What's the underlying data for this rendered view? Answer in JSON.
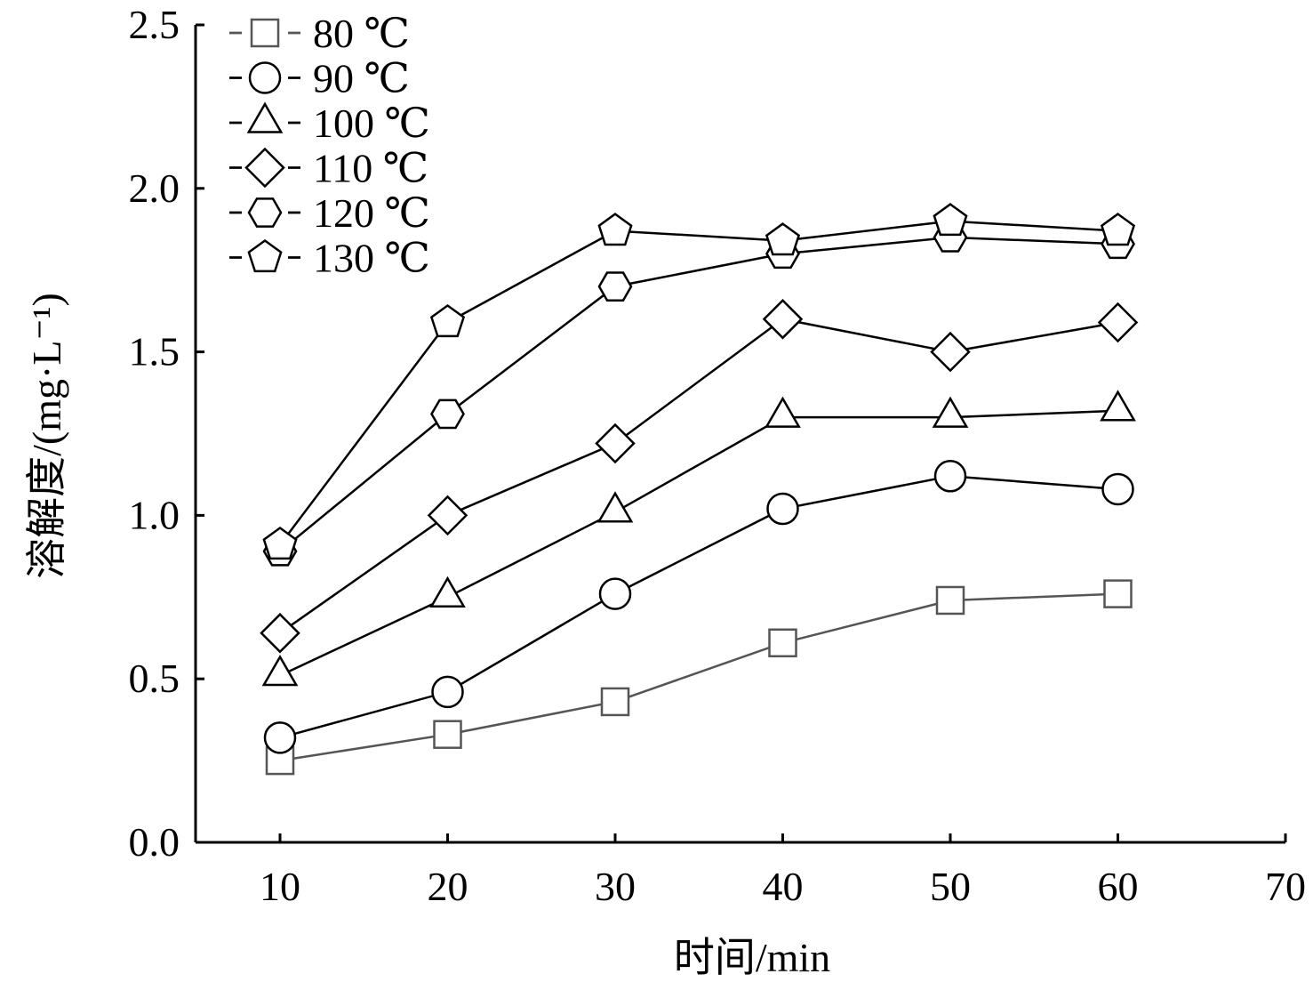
{
  "chart_data": {
    "type": "line",
    "title": "",
    "xlabel": "时间/min",
    "ylabel": "溶解度/(mg·L⁻¹)",
    "xlim": [
      5,
      70
    ],
    "ylim": [
      0,
      2.5
    ],
    "xticks": [
      "10",
      "20",
      "30",
      "40",
      "50",
      "60",
      "70"
    ],
    "yticks": [
      "0.0",
      "0.5",
      "1.0",
      "1.5",
      "2.0",
      "2.5"
    ],
    "grid": false,
    "legend_position": "top-left",
    "x": [
      10,
      20,
      30,
      40,
      50,
      60
    ],
    "series": [
      {
        "name": "80 ℃",
        "marker": "square",
        "color": "#555555",
        "values": [
          0.25,
          0.33,
          0.43,
          0.61,
          0.74,
          0.76
        ]
      },
      {
        "name": "90 ℃",
        "marker": "circle",
        "color": "#000000",
        "values": [
          0.32,
          0.46,
          0.76,
          1.02,
          1.12,
          1.08
        ]
      },
      {
        "name": "100 ℃",
        "marker": "triangle",
        "color": "#000000",
        "values": [
          0.51,
          0.75,
          1.01,
          1.3,
          1.3,
          1.32
        ]
      },
      {
        "name": "110 ℃",
        "marker": "diamond",
        "color": "#000000",
        "values": [
          0.64,
          1.0,
          1.22,
          1.6,
          1.5,
          1.59
        ]
      },
      {
        "name": "120 ℃",
        "marker": "hexagon",
        "color": "#000000",
        "values": [
          0.89,
          1.31,
          1.7,
          1.8,
          1.85,
          1.83
        ]
      },
      {
        "name": "130 ℃",
        "marker": "pentagon",
        "color": "#000000",
        "values": [
          0.91,
          1.59,
          1.87,
          1.84,
          1.9,
          1.87
        ]
      }
    ]
  }
}
